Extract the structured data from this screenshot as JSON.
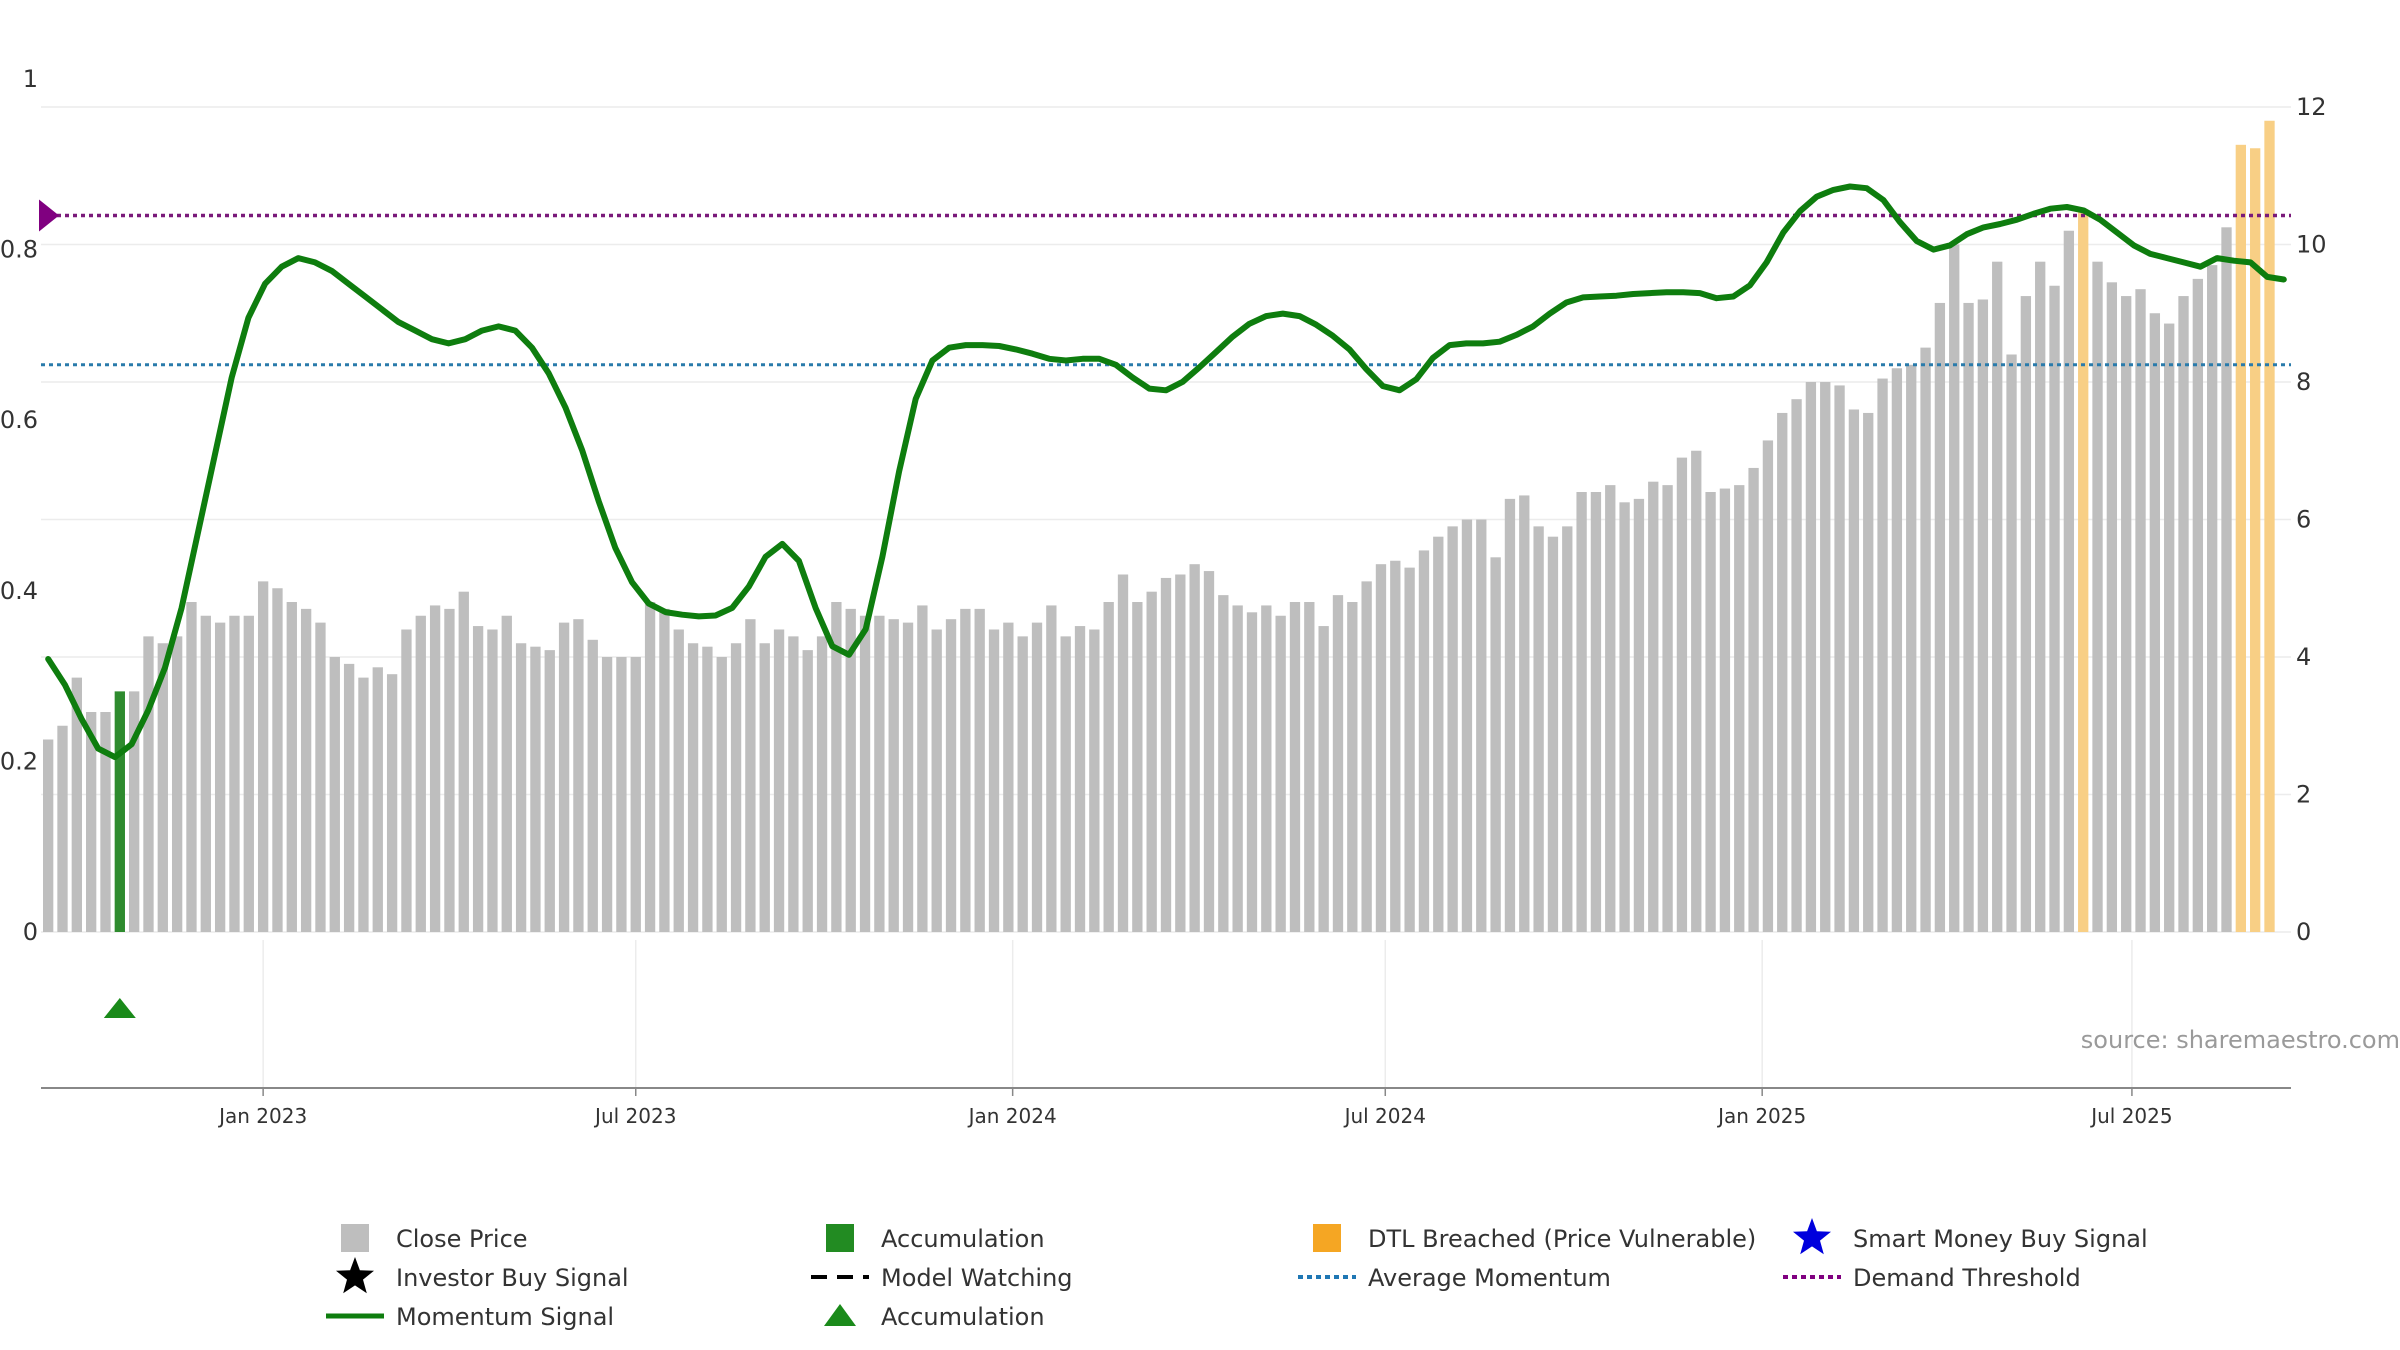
{
  "chart_data": {
    "type": "bar+line",
    "source": "source: sharemaestro.com",
    "left_axis": {
      "ylim": [
        0,
        1
      ],
      "ticks": [
        "0",
        "0.2",
        "0.4",
        "0.6",
        "0.8",
        "1"
      ],
      "tick_values": [
        0,
        0.2,
        0.4,
        0.6,
        0.8,
        1
      ]
    },
    "right_axis": {
      "ylim": [
        0,
        12
      ],
      "ticks": [
        "0",
        "2",
        "4",
        "6",
        "8",
        "10",
        "12"
      ],
      "tick_values": [
        0,
        2,
        4,
        6,
        8,
        10,
        12
      ]
    },
    "x_ticks": [
      {
        "label": "Jan 2023",
        "week": 15
      },
      {
        "label": "Jul 2023",
        "week": 41
      },
      {
        "label": "Jan 2024",
        "week": 67.3
      },
      {
        "label": "Jul 2024",
        "week": 93.3
      },
      {
        "label": "Jan 2025",
        "week": 119.6
      },
      {
        "label": "Jul 2025",
        "week": 145.4
      }
    ],
    "x_range": [
      -0.5,
      156.5
    ],
    "close_price": [
      2.8,
      3.0,
      3.7,
      3.2,
      3.2,
      3.5,
      3.5,
      4.3,
      4.2,
      4.3,
      4.8,
      4.6,
      4.5,
      4.6,
      4.6,
      5.1,
      5.0,
      4.8,
      4.7,
      4.5,
      4.0,
      3.9,
      3.7,
      3.85,
      3.75,
      4.4,
      4.6,
      4.75,
      4.7,
      4.95,
      4.45,
      4.4,
      4.6,
      4.2,
      4.15,
      4.1,
      4.5,
      4.55,
      4.25,
      4.0,
      4.0,
      4.0,
      4.8,
      4.7,
      4.4,
      4.2,
      4.15,
      4.0,
      4.2,
      4.55,
      4.2,
      4.4,
      4.3,
      4.1,
      4.3,
      4.8,
      4.7,
      4.6,
      4.6,
      4.55,
      4.5,
      4.75,
      4.4,
      4.55,
      4.7,
      4.7,
      4.4,
      4.5,
      4.3,
      4.5,
      4.75,
      4.3,
      4.45,
      4.4,
      4.8,
      5.2,
      4.8,
      4.95,
      5.15,
      5.2,
      5.35,
      5.25,
      4.9,
      4.75,
      4.65,
      4.75,
      4.6,
      4.8,
      4.8,
      4.45,
      4.9,
      4.8,
      5.1,
      5.35,
      5.4,
      5.3,
      5.55,
      5.75,
      5.9,
      6.0,
      6.0,
      5.45,
      6.3,
      6.35,
      5.9,
      5.75,
      5.9,
      6.4,
      6.4,
      6.5,
      6.25,
      6.3,
      6.55,
      6.5,
      6.9,
      7.0,
      6.4,
      6.45,
      6.5,
      6.75,
      7.15,
      7.55,
      7.75,
      8.0,
      8.0,
      7.95,
      7.6,
      7.55,
      8.05,
      8.2,
      8.25,
      8.5,
      9.15,
      10.0,
      9.15,
      9.2,
      9.75,
      8.4,
      9.25,
      9.75,
      9.4,
      10.2,
      10.5,
      9.75,
      9.45,
      9.25,
      9.35,
      9.0,
      8.85,
      9.25,
      9.5,
      9.7,
      10.25,
      11.45,
      11.4,
      11.8
    ],
    "accumulation_weeks": [
      5
    ],
    "dtl_breached_weeks": [
      142,
      153,
      154,
      155
    ],
    "momentum_signal": [
      [
        0,
        0.32
      ],
      [
        1,
        0.29
      ],
      [
        2,
        0.25
      ],
      [
        3,
        0.215
      ],
      [
        4,
        0.205
      ],
      [
        5,
        0.22
      ],
      [
        6,
        0.26
      ],
      [
        7,
        0.31
      ],
      [
        8,
        0.38
      ],
      [
        9,
        0.47
      ],
      [
        10,
        0.56
      ],
      [
        11,
        0.65
      ],
      [
        12,
        0.72
      ],
      [
        13,
        0.76
      ],
      [
        14,
        0.78
      ],
      [
        15,
        0.79
      ],
      [
        16,
        0.785
      ],
      [
        17,
        0.775
      ],
      [
        18,
        0.76
      ],
      [
        19,
        0.745
      ],
      [
        20,
        0.73
      ],
      [
        21,
        0.715
      ],
      [
        22,
        0.705
      ],
      [
        23,
        0.695
      ],
      [
        24,
        0.69
      ],
      [
        25,
        0.695
      ],
      [
        26,
        0.705
      ],
      [
        27,
        0.71
      ],
      [
        28,
        0.705
      ],
      [
        29,
        0.685
      ],
      [
        30,
        0.655
      ],
      [
        31,
        0.615
      ],
      [
        32,
        0.565
      ],
      [
        33,
        0.505
      ],
      [
        34,
        0.45
      ],
      [
        35,
        0.41
      ],
      [
        36,
        0.385
      ],
      [
        37,
        0.375
      ],
      [
        38,
        0.372
      ],
      [
        39,
        0.37
      ],
      [
        40,
        0.371
      ],
      [
        41,
        0.38
      ],
      [
        42,
        0.405
      ],
      [
        43,
        0.44
      ],
      [
        44,
        0.455
      ],
      [
        45,
        0.435
      ],
      [
        46,
        0.38
      ],
      [
        47,
        0.335
      ],
      [
        48,
        0.325
      ],
      [
        49,
        0.355
      ],
      [
        50,
        0.44
      ],
      [
        51,
        0.54
      ],
      [
        52,
        0.625
      ],
      [
        53,
        0.67
      ],
      [
        54,
        0.685
      ],
      [
        55,
        0.688
      ],
      [
        56,
        0.688
      ],
      [
        57,
        0.687
      ],
      [
        58,
        0.683
      ],
      [
        59,
        0.678
      ],
      [
        60,
        0.672
      ],
      [
        61,
        0.67
      ],
      [
        62,
        0.672
      ],
      [
        63,
        0.672
      ],
      [
        64,
        0.665
      ],
      [
        65,
        0.65
      ],
      [
        66,
        0.637
      ],
      [
        67,
        0.635
      ],
      [
        68,
        0.645
      ],
      [
        69,
        0.662
      ],
      [
        70,
        0.68
      ],
      [
        71,
        0.698
      ],
      [
        72,
        0.713
      ],
      [
        73,
        0.722
      ],
      [
        74,
        0.725
      ],
      [
        75,
        0.722
      ],
      [
        76,
        0.712
      ],
      [
        77,
        0.699
      ],
      [
        78,
        0.683
      ],
      [
        79,
        0.66
      ],
      [
        80,
        0.64
      ],
      [
        81,
        0.635
      ],
      [
        82,
        0.648
      ],
      [
        83,
        0.673
      ],
      [
        84,
        0.688
      ],
      [
        85,
        0.69
      ],
      [
        86,
        0.69
      ],
      [
        87,
        0.692
      ],
      [
        88,
        0.7
      ],
      [
        89,
        0.71
      ],
      [
        90,
        0.725
      ],
      [
        91,
        0.738
      ],
      [
        92,
        0.744
      ],
      [
        93,
        0.745
      ],
      [
        94,
        0.746
      ],
      [
        95,
        0.748
      ],
      [
        96,
        0.749
      ],
      [
        97,
        0.75
      ],
      [
        98,
        0.75
      ],
      [
        99,
        0.749
      ],
      [
        100,
        0.743
      ],
      [
        101,
        0.745
      ],
      [
        102,
        0.758
      ],
      [
        103,
        0.785
      ],
      [
        104,
        0.82
      ],
      [
        105,
        0.845
      ],
      [
        106,
        0.862
      ],
      [
        107,
        0.87
      ],
      [
        108,
        0.874
      ],
      [
        109,
        0.872
      ],
      [
        110,
        0.858
      ],
      [
        111,
        0.832
      ],
      [
        112,
        0.81
      ],
      [
        113,
        0.8
      ],
      [
        114,
        0.805
      ],
      [
        115,
        0.818
      ],
      [
        116,
        0.826
      ],
      [
        117,
        0.83
      ],
      [
        118,
        0.835
      ],
      [
        119,
        0.842
      ],
      [
        120,
        0.848
      ],
      [
        121,
        0.85
      ],
      [
        122,
        0.846
      ],
      [
        123,
        0.835
      ],
      [
        124,
        0.82
      ],
      [
        125,
        0.805
      ],
      [
        126,
        0.795
      ],
      [
        127,
        0.79
      ],
      [
        128,
        0.785
      ],
      [
        129,
        0.78
      ],
      [
        130,
        0.79
      ],
      [
        131,
        0.787
      ],
      [
        132,
        0.785
      ],
      [
        133,
        0.768
      ],
      [
        134,
        0.765
      ]
    ],
    "momentum_x_offset_weeks": 21.5,
    "average_momentum": 0.665,
    "demand_threshold": 0.84,
    "accumulation_markers_weeks": [
      5
    ],
    "legend": [
      {
        "label": "Close Price",
        "symbol": "square",
        "color": "#bebebe"
      },
      {
        "label": "Accumulation",
        "symbol": "square",
        "color": "#228b22"
      },
      {
        "label": "DTL Breached (Price Vulnerable)",
        "symbol": "square",
        "color": "#f5a623"
      },
      {
        "label": "Smart Money Buy Signal",
        "symbol": "star",
        "color": "#0000dd"
      },
      {
        "label": "Investor Buy Signal",
        "symbol": "star",
        "color": "#000000"
      },
      {
        "label": "Model Watching",
        "symbol": "dash-line",
        "color": "#000000"
      },
      {
        "label": "Average Momentum",
        "symbol": "dotted-line",
        "color": "#1f77b4"
      },
      {
        "label": "Demand Threshold",
        "symbol": "dotted-line",
        "color": "#800080"
      },
      {
        "label": "Momentum Signal",
        "symbol": "solid-line",
        "color": "#0e7d0e"
      },
      {
        "label": "Accumulation",
        "symbol": "triangle",
        "color": "#1a8a1a"
      }
    ],
    "colors": {
      "close_price": "#bebebe",
      "accumulation": "#2e8b2e",
      "dtl_breached": "#f8cf85",
      "momentum": "#0e7d0e",
      "average_momentum": "#2a7bab",
      "demand_threshold": "#7a1a7a"
    }
  }
}
